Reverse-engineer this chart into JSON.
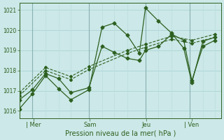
{
  "xlabel": "Pression niveau de la mer( hPa )",
  "bg_color": "#cce8e8",
  "line_color": "#2d6020",
  "grid_major_color": "#aad4d4",
  "grid_minor_color": "#bbdddd",
  "vline_color": "#8ab0b0",
  "yticks": [
    1016,
    1017,
    1018,
    1019,
    1020,
    1021
  ],
  "ylim": [
    1015.65,
    1021.35
  ],
  "xlim": [
    0.0,
    1.0
  ],
  "xtick_labels": [
    "| Mer",
    "Sam",
    "Jeu",
    "| Ven"
  ],
  "xtick_positions": [
    0.07,
    0.35,
    0.63,
    0.855
  ],
  "vline_positions": [
    0.065,
    0.345,
    0.625,
    0.845
  ],
  "minor_vlines": [
    0.065,
    0.13,
    0.195,
    0.255,
    0.345,
    0.41,
    0.47,
    0.535,
    0.625,
    0.69,
    0.755,
    0.845,
    0.91,
    0.97
  ],
  "s1_x": [
    0.0,
    0.065,
    0.13,
    0.195,
    0.255,
    0.345,
    0.41,
    0.47,
    0.535,
    0.595,
    0.625,
    0.69,
    0.755,
    0.815,
    0.855,
    0.91,
    0.97
  ],
  "s1_y": [
    1016.1,
    1016.85,
    1017.75,
    1017.1,
    1016.55,
    1017.05,
    1020.15,
    1020.35,
    1019.75,
    1018.85,
    1021.1,
    1020.45,
    1019.85,
    1019.1,
    1017.4,
    1019.45,
    1019.65
  ],
  "s2_x": [
    0.0,
    0.065,
    0.13,
    0.195,
    0.255,
    0.345,
    0.41,
    0.47,
    0.535,
    0.595,
    0.625,
    0.69,
    0.755,
    0.815,
    0.855,
    0.91,
    0.97
  ],
  "s2_y": [
    1016.55,
    1017.05,
    1017.85,
    1017.6,
    1016.9,
    1017.15,
    1019.2,
    1018.9,
    1018.6,
    1018.5,
    1019.0,
    1019.2,
    1019.8,
    1019.5,
    1017.5,
    1019.2,
    1019.5
  ],
  "s3_x": [
    0.0,
    0.13,
    0.255,
    0.345,
    0.535,
    0.625,
    0.755,
    0.855,
    0.97
  ],
  "s3_y": [
    1016.75,
    1018.0,
    1017.55,
    1018.05,
    1018.85,
    1019.15,
    1019.55,
    1019.35,
    1019.65
  ],
  "s4_x": [
    0.0,
    0.13,
    0.255,
    0.345,
    0.535,
    0.625,
    0.755,
    0.855,
    0.97
  ],
  "s4_y": [
    1016.9,
    1018.15,
    1017.7,
    1018.2,
    1019.0,
    1019.3,
    1019.7,
    1019.5,
    1019.8
  ]
}
